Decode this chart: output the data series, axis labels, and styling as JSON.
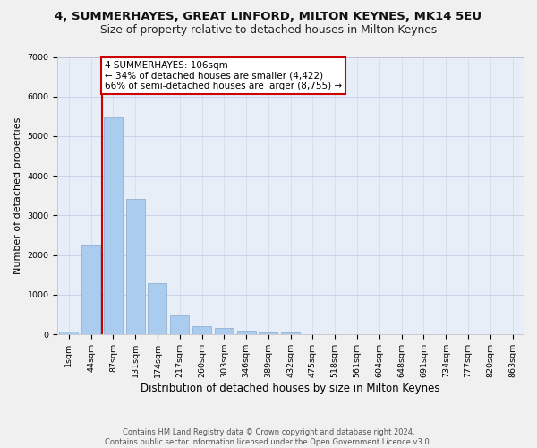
{
  "title": "4, SUMMERHAYES, GREAT LINFORD, MILTON KEYNES, MK14 5EU",
  "subtitle": "Size of property relative to detached houses in Milton Keynes",
  "xlabel": "Distribution of detached houses by size in Milton Keynes",
  "ylabel": "Number of detached properties",
  "categories": [
    "1sqm",
    "44sqm",
    "87sqm",
    "131sqm",
    "174sqm",
    "217sqm",
    "260sqm",
    "303sqm",
    "346sqm",
    "389sqm",
    "432sqm",
    "475sqm",
    "518sqm",
    "561sqm",
    "604sqm",
    "648sqm",
    "691sqm",
    "734sqm",
    "777sqm",
    "820sqm",
    "863sqm"
  ],
  "values": [
    80,
    2270,
    5480,
    3420,
    1300,
    490,
    200,
    170,
    100,
    60,
    45,
    0,
    0,
    0,
    0,
    0,
    0,
    0,
    0,
    0,
    0
  ],
  "bar_color": "#aaccee",
  "bar_edge_color": "#88aacc",
  "annotation_text_line1": "4 SUMMERHAYES: 106sqm",
  "annotation_text_line2": "← 34% of detached houses are smaller (4,422)",
  "annotation_text_line3": "66% of semi-detached houses are larger (8,755) →",
  "annotation_box_color": "#ffffff",
  "annotation_box_edge_color": "#cc0000",
  "vline_color": "#cc0000",
  "grid_color": "#c8d4e8",
  "background_color": "#e8eef8",
  "fig_background_color": "#f0f0f0",
  "ylim": [
    0,
    7000
  ],
  "yticks": [
    0,
    1000,
    2000,
    3000,
    4000,
    5000,
    6000,
    7000
  ],
  "vline_bar_index": 2,
  "title_fontsize": 9.5,
  "subtitle_fontsize": 8.8,
  "xlabel_fontsize": 8.5,
  "ylabel_fontsize": 8.0,
  "tick_fontsize": 6.8,
  "annot_fontsize": 7.5,
  "footer_line1": "Contains HM Land Registry data © Crown copyright and database right 2024.",
  "footer_line2": "Contains public sector information licensed under the Open Government Licence v3.0."
}
